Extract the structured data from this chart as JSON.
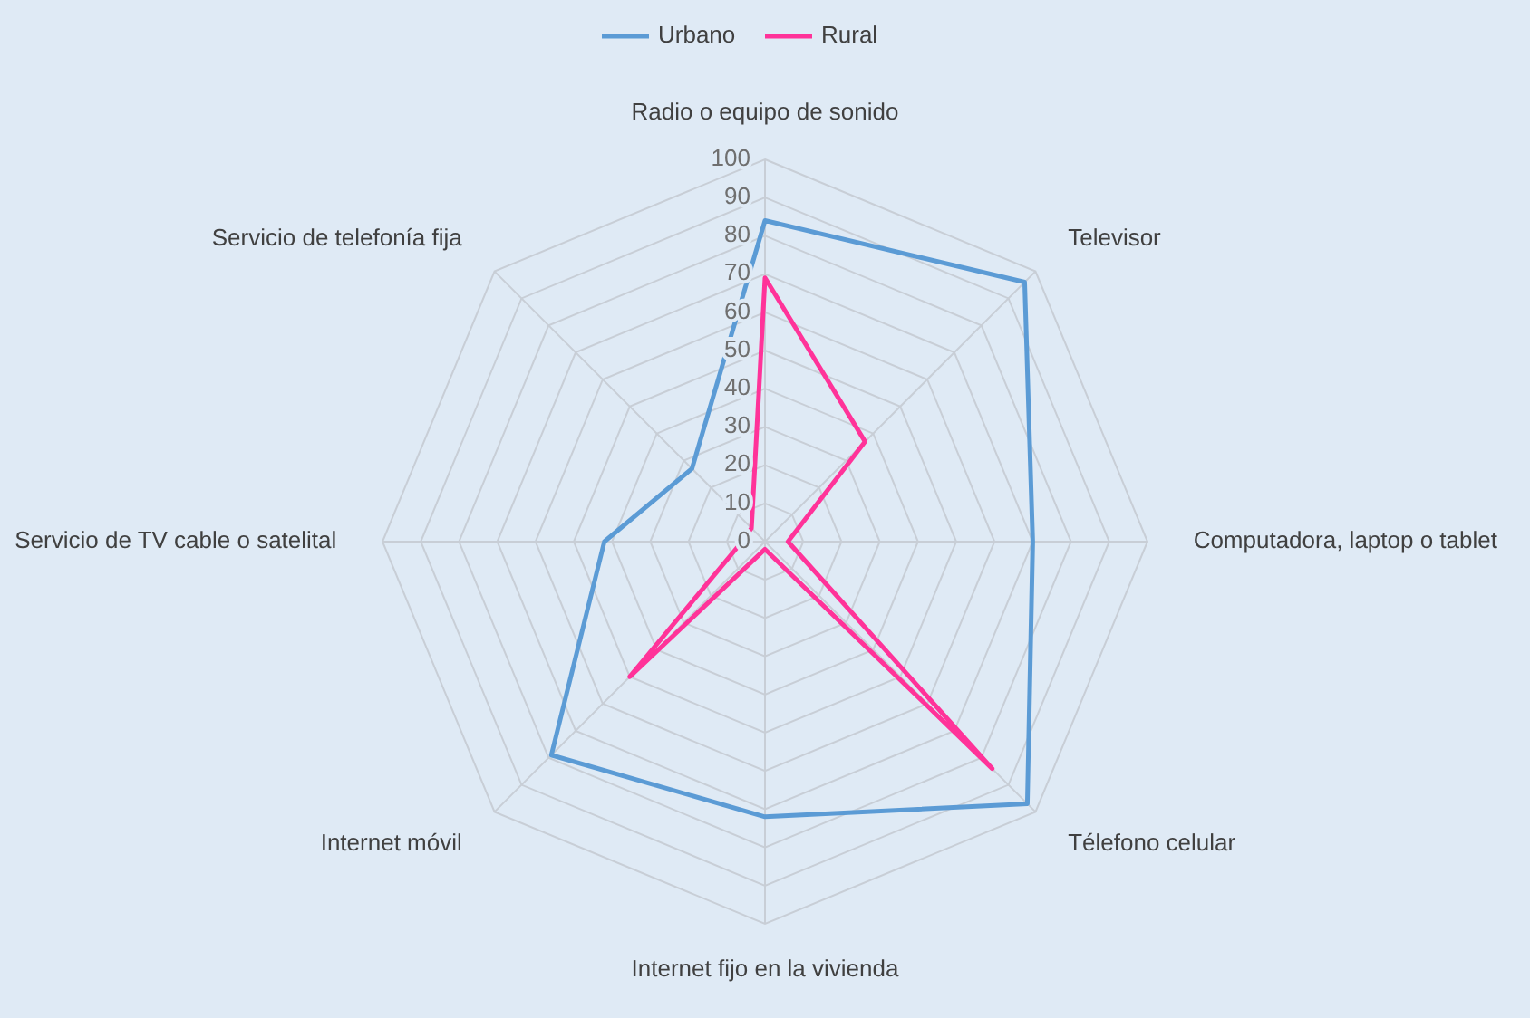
{
  "chart_data": {
    "type": "radar",
    "categories": [
      "Radio o equipo de sonido",
      "Televisor",
      "Computadora, laptop o tablet",
      "Télefono celular",
      "Internet fijo en la vivienda",
      "Internet móvil",
      "Servicio de TV cable o satelital",
      "Servicio de telefonía fija"
    ],
    "series": [
      {
        "name": "Urbano",
        "color": "#5b9bd5",
        "values": [
          84,
          96,
          70,
          97,
          72,
          79,
          42,
          27
        ]
      },
      {
        "name": "Rural",
        "color": "#ff3399",
        "values": [
          69,
          37,
          6,
          84,
          2,
          50,
          6,
          5
        ]
      }
    ],
    "ylim": [
      0,
      100
    ],
    "yticks": [
      0,
      10,
      20,
      30,
      40,
      50,
      60,
      70,
      80,
      90,
      100
    ],
    "grid": true,
    "legend": "top"
  }
}
